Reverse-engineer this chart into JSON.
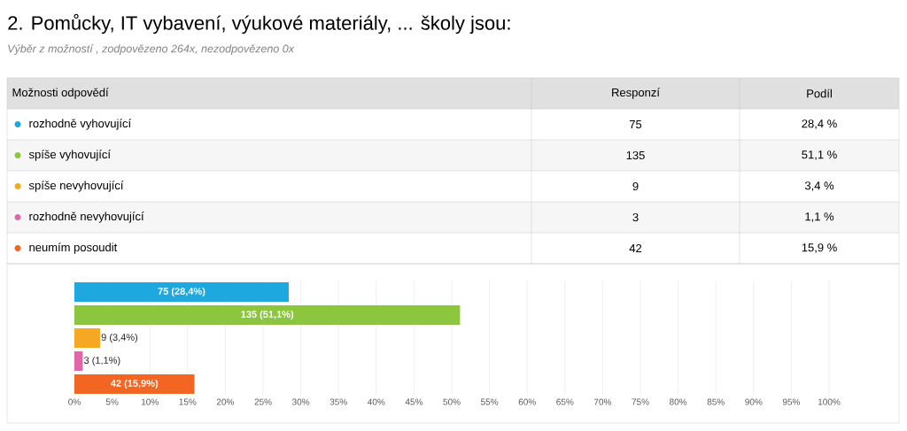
{
  "chart_data": {
    "type": "bar",
    "orientation": "horizontal",
    "title": "2. Pomůcky, IT vybavení, výukové materiály, ... školy jsou:",
    "subtitle": "Výběr z možností , zodpovězeno 264x, nezodpovězeno 0x",
    "categories": [
      null,
      null,
      null,
      null,
      null
    ],
    "values": [
      28.4,
      51.1,
      3.4,
      1.1,
      15.9
    ],
    "colors": [
      "#1ea8e0",
      "#8cc63f",
      "#f7a823",
      "#e066a8",
      "#f26522"
    ],
    "value_labels": [
      "75 (28,4%)",
      "135 (51,1%)",
      "9 (3,4%)",
      "3 (1,1%)",
      "42 (15,9%)"
    ],
    "xlim": [
      0,
      100
    ],
    "xticks": [
      {
        "value": 0,
        "label": "0%"
      },
      {
        "value": 5,
        "label": "5%"
      },
      {
        "value": 10,
        "label": "10%"
      },
      {
        "value": 15,
        "label": "15%"
      },
      {
        "value": 20,
        "label": "20%"
      },
      {
        "value": 25,
        "label": "25%"
      },
      {
        "value": 30,
        "label": "30%"
      },
      {
        "value": 35,
        "label": "35%"
      },
      {
        "value": 40,
        "label": "40%"
      },
      {
        "value": 45,
        "label": "45%"
      },
      {
        "value": 50,
        "label": "50%"
      },
      {
        "value": 55,
        "label": "55%"
      },
      {
        "value": 60,
        "label": "60%"
      },
      {
        "value": 65,
        "label": "65%"
      },
      {
        "value": 70,
        "label": "70%"
      },
      {
        "value": 75,
        "label": "75%"
      },
      {
        "value": 80,
        "label": "80%"
      },
      {
        "value": 85,
        "label": "85%"
      },
      {
        "value": 90,
        "label": "90%"
      },
      {
        "value": 95,
        "label": "95%"
      },
      {
        "value": 100,
        "label": "100%"
      }
    ],
    "grid": "x",
    "annotations": [
      "Možnosti odpovědí",
      "Responzí",
      "Podíl",
      "rozhodně vyhovující",
      "75",
      "28,4 %",
      "spíše vyhovující",
      "135",
      "51,1 %",
      "spíše nevyhovující",
      "9",
      "3,4 %",
      "rozhodně nevyhovující",
      "3",
      "1,1 %",
      "neumím posoudit",
      "42",
      "15,9 %"
    ]
  }
}
